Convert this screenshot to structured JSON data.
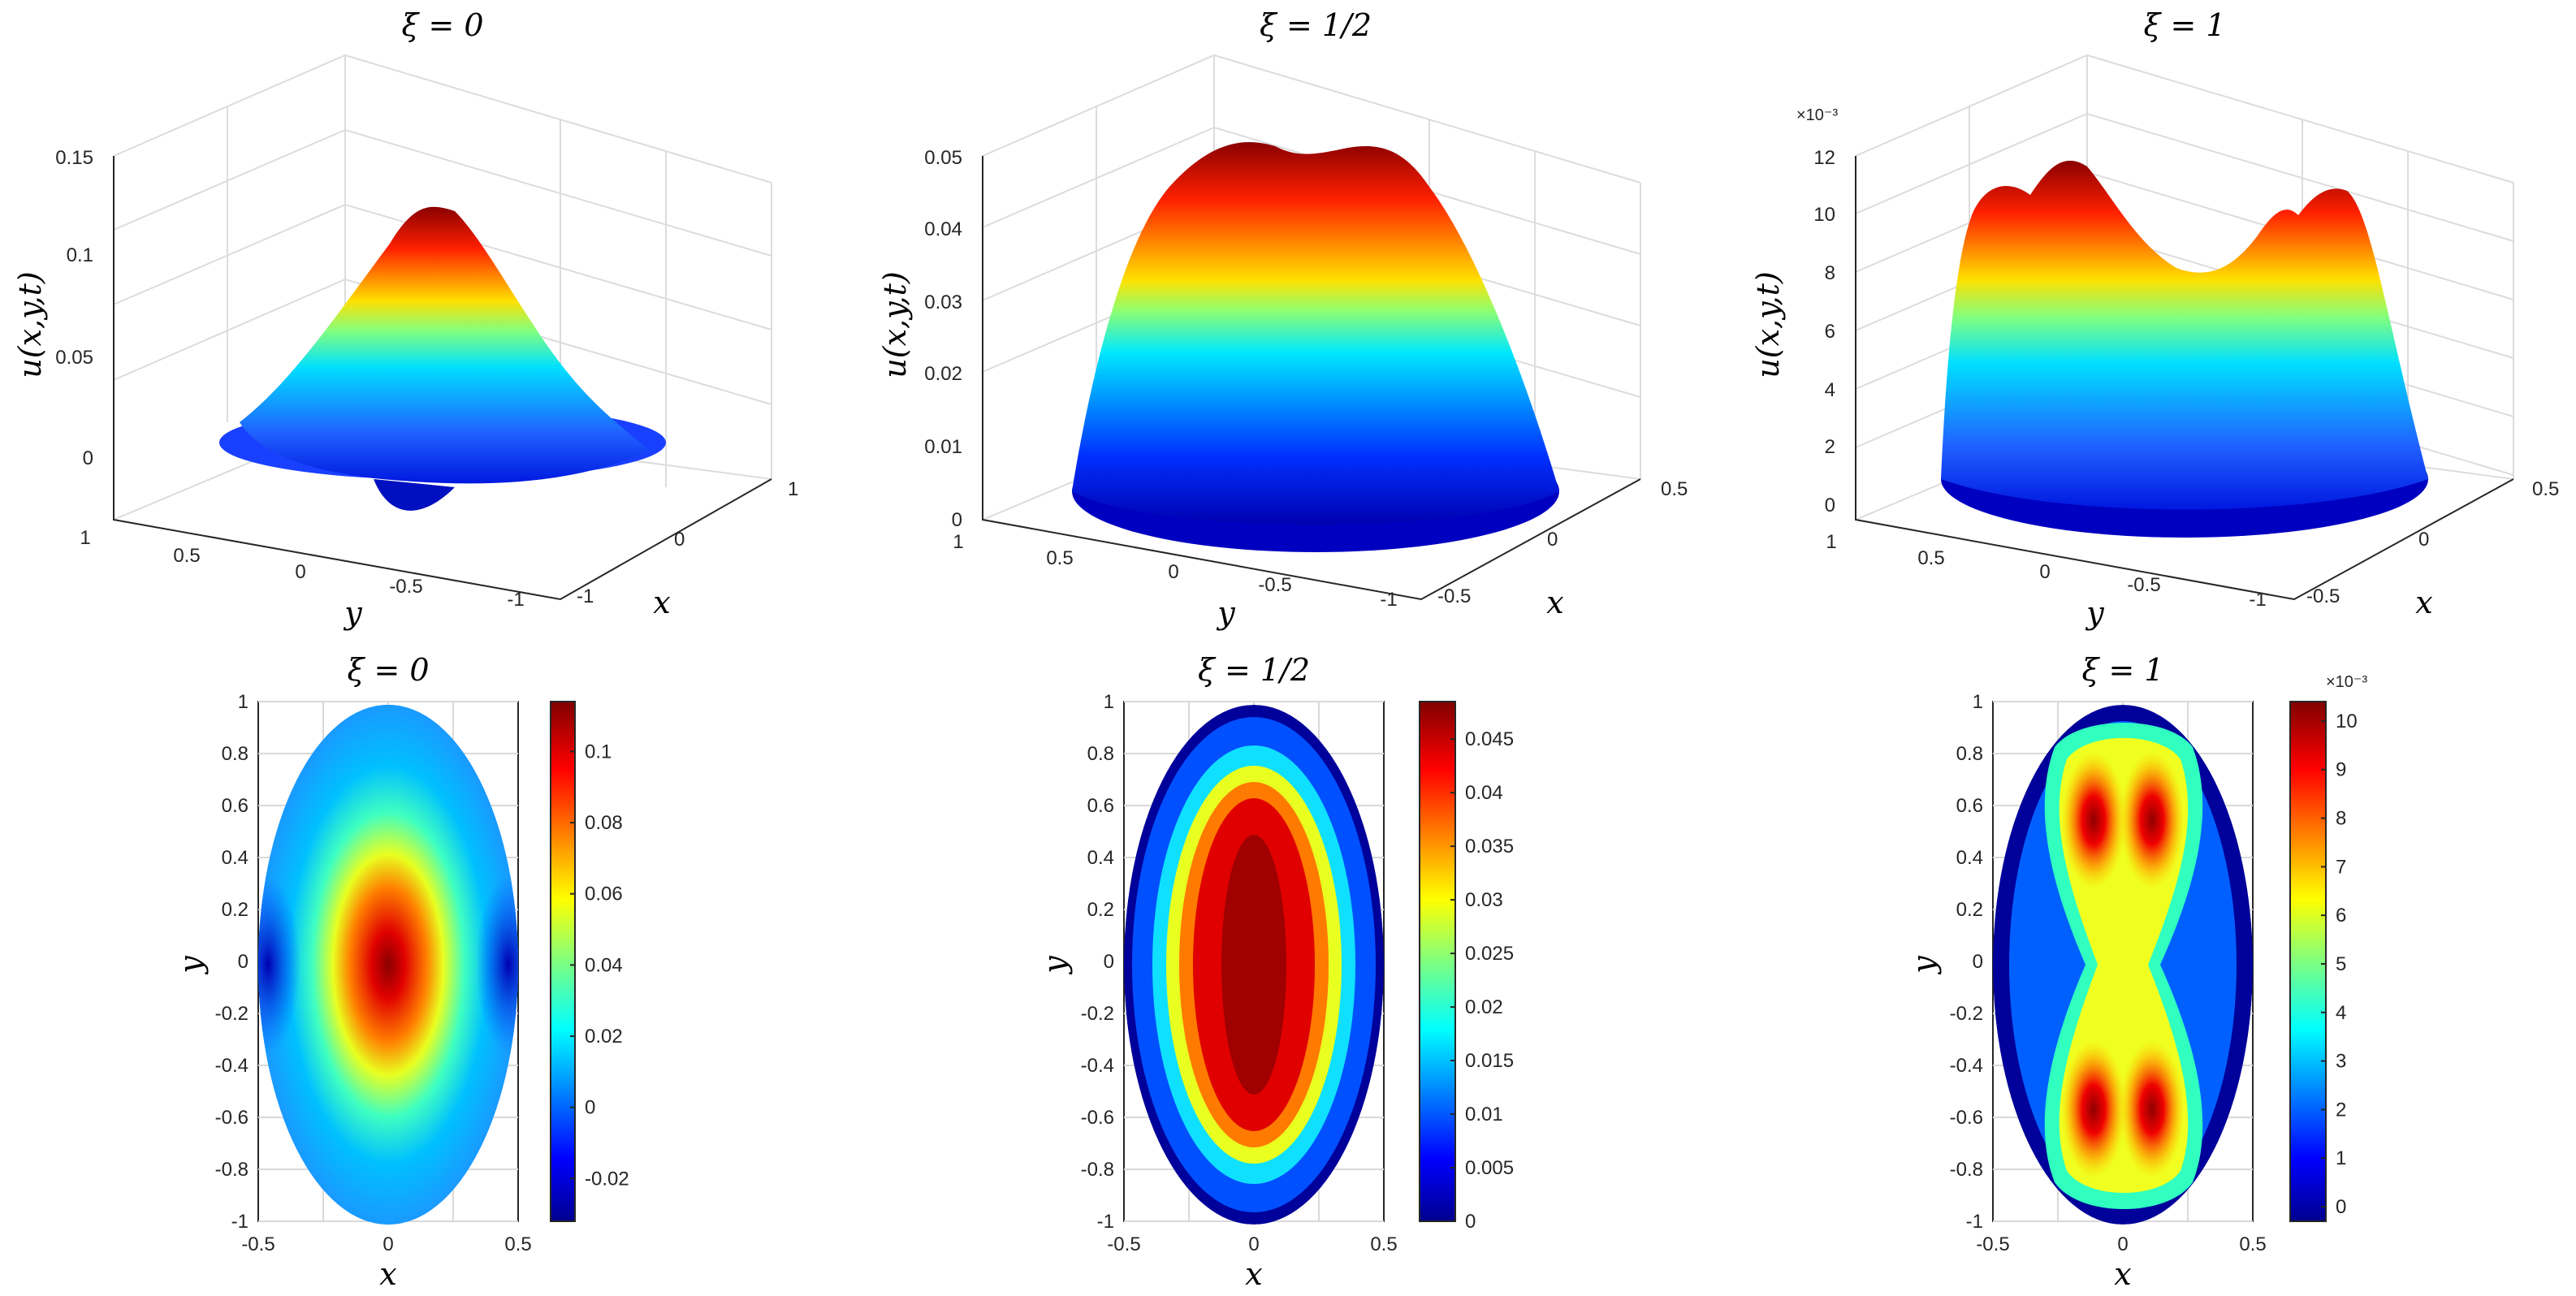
{
  "chart_data": [
    {
      "type": "surface",
      "title": "ξ = 0",
      "xlabel": "x",
      "ylabel": "y",
      "zlabel": "u(x,y,t)",
      "x_ticks": [
        "-1",
        "0",
        "1"
      ],
      "y_ticks": [
        "1",
        "0.5",
        "0",
        "-0.5",
        "-1"
      ],
      "z_ticks": [
        "0",
        "0.05",
        "0.1",
        "0.15"
      ],
      "zlim": [
        0,
        0.15
      ],
      "peak": 0.12,
      "min": -0.03,
      "colormap": "jet"
    },
    {
      "type": "surface",
      "title": "ξ = 1/2",
      "xlabel": "x",
      "ylabel": "y",
      "zlabel": "u(x,y,t)",
      "x_ticks": [
        "-0.5",
        "0",
        "0.5"
      ],
      "y_ticks": [
        "1",
        "0.5",
        "0",
        "-0.5",
        "-1"
      ],
      "z_ticks": [
        "0",
        "0.01",
        "0.02",
        "0.03",
        "0.04",
        "0.05"
      ],
      "zlim": [
        0,
        0.05
      ],
      "peak": 0.048,
      "min": 0,
      "colormap": "jet"
    },
    {
      "type": "surface",
      "title": "ξ = 1",
      "xlabel": "x",
      "ylabel": "y",
      "zlabel": "u(x,y,t)",
      "x_ticks": [
        "-0.5",
        "0",
        "0.5"
      ],
      "y_ticks": [
        "1",
        "0.5",
        "0",
        "-0.5",
        "-1"
      ],
      "z_ticks": [
        "0",
        "2",
        "4",
        "6",
        "8",
        "10",
        "12"
      ],
      "z_exponent": "×10⁻³",
      "zlim": [
        0,
        12
      ],
      "peak": 10.4,
      "min": 0,
      "colormap": "jet"
    },
    {
      "type": "heatmap",
      "title": "ξ = 0",
      "xlabel": "x",
      "ylabel": "y",
      "x_ticks": [
        "-0.5",
        "0",
        "0.5"
      ],
      "y_ticks": [
        "1",
        "0.8",
        "0.6",
        "0.4",
        "0.2",
        "0",
        "-0.2",
        "-0.4",
        "-0.6",
        "-0.8",
        "-1"
      ],
      "colorbar_ticks": [
        "-0.02",
        "0",
        "0.02",
        "0.04",
        "0.06",
        "0.08",
        "0.1"
      ],
      "clim": [
        -0.032,
        0.114
      ],
      "colormap": "jet"
    },
    {
      "type": "heatmap",
      "title": "ξ = 1/2",
      "xlabel": "x",
      "ylabel": "y",
      "x_ticks": [
        "-0.5",
        "0",
        "0.5"
      ],
      "y_ticks": [
        "1",
        "0.8",
        "0.6",
        "0.4",
        "0.2",
        "0",
        "-0.2",
        "-0.4",
        "-0.6",
        "-0.8",
        "-1"
      ],
      "colorbar_ticks": [
        "0",
        "0.005",
        "0.01",
        "0.015",
        "0.02",
        "0.025",
        "0.03",
        "0.035",
        "0.04",
        "0.045"
      ],
      "clim": [
        0,
        0.0485
      ],
      "colormap": "jet"
    },
    {
      "type": "heatmap",
      "title": "ξ = 1",
      "xlabel": "x",
      "ylabel": "y",
      "x_ticks": [
        "-0.5",
        "0",
        "0.5"
      ],
      "y_ticks": [
        "1",
        "0.8",
        "0.6",
        "0.4",
        "0.2",
        "0",
        "-0.2",
        "-0.4",
        "-0.6",
        "-0.8",
        "-1"
      ],
      "colorbar_ticks": [
        "0",
        "1",
        "2",
        "3",
        "4",
        "5",
        "6",
        "7",
        "8",
        "9",
        "10"
      ],
      "colorbar_exponent": "×10⁻³",
      "clim": [
        -0.3,
        10.4
      ],
      "colormap": "jet"
    }
  ]
}
